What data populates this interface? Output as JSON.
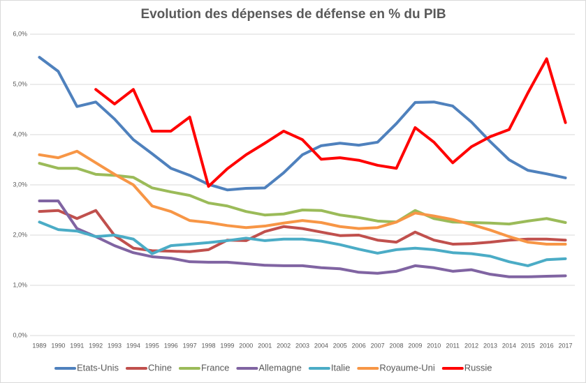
{
  "chart_data": {
    "type": "line",
    "title": "Evolution des dépenses de défense en % du PIB",
    "categories": [
      "1989",
      "1990",
      "1991",
      "1992",
      "1993",
      "1994",
      "1995",
      "1996",
      "1997",
      "1998",
      "1999",
      "2000",
      "2001",
      "2002",
      "2003",
      "2004",
      "2005",
      "2006",
      "2007",
      "2008",
      "2009",
      "2010",
      "2011",
      "2012",
      "2013",
      "2014",
      "2015",
      "2016",
      "2017"
    ],
    "series": [
      {
        "name": "Etats-Unis",
        "color": "#4f81bd",
        "values": [
          5.54,
          5.26,
          4.56,
          4.65,
          4.31,
          3.9,
          3.62,
          3.33,
          3.19,
          3.01,
          2.9,
          2.93,
          2.94,
          3.24,
          3.6,
          3.78,
          3.83,
          3.79,
          3.85,
          4.22,
          4.64,
          4.65,
          4.57,
          4.25,
          3.86,
          3.5,
          3.29,
          3.22,
          3.14
        ]
      },
      {
        "name": "Chine",
        "color": "#c0504d",
        "values": [
          2.47,
          2.49,
          2.33,
          2.49,
          1.99,
          1.74,
          1.69,
          1.68,
          1.67,
          1.71,
          1.9,
          1.89,
          2.07,
          2.17,
          2.13,
          2.06,
          1.99,
          2.0,
          1.9,
          1.86,
          2.06,
          1.9,
          1.82,
          1.83,
          1.86,
          1.9,
          1.92,
          1.92,
          1.9
        ]
      },
      {
        "name": "France",
        "color": "#9bbb59",
        "values": [
          3.43,
          3.33,
          3.33,
          3.21,
          3.19,
          3.15,
          2.94,
          2.86,
          2.79,
          2.64,
          2.58,
          2.47,
          2.4,
          2.42,
          2.5,
          2.49,
          2.4,
          2.35,
          2.28,
          2.26,
          2.49,
          2.33,
          2.26,
          2.25,
          2.24,
          2.22,
          2.28,
          2.33,
          2.25
        ]
      },
      {
        "name": "Allemagne",
        "color": "#8064a2",
        "values": [
          2.68,
          2.68,
          2.13,
          1.97,
          1.79,
          1.65,
          1.57,
          1.54,
          1.47,
          1.46,
          1.46,
          1.43,
          1.4,
          1.39,
          1.39,
          1.35,
          1.33,
          1.26,
          1.24,
          1.28,
          1.39,
          1.35,
          1.28,
          1.31,
          1.22,
          1.17,
          1.17,
          1.18,
          1.19
        ]
      },
      {
        "name": "Italie",
        "color": "#4bacc6",
        "values": [
          2.26,
          2.11,
          2.08,
          1.97,
          2.0,
          1.92,
          1.63,
          1.79,
          1.82,
          1.85,
          1.89,
          1.94,
          1.89,
          1.92,
          1.92,
          1.88,
          1.81,
          1.72,
          1.64,
          1.71,
          1.74,
          1.71,
          1.65,
          1.63,
          1.58,
          1.47,
          1.39,
          1.51,
          1.53
        ]
      },
      {
        "name": "Royaume-Uni",
        "color": "#f79646",
        "values": [
          3.6,
          3.54,
          3.67,
          3.44,
          3.21,
          3.0,
          2.58,
          2.47,
          2.29,
          2.25,
          2.19,
          2.15,
          2.18,
          2.24,
          2.29,
          2.25,
          2.17,
          2.13,
          2.15,
          2.26,
          2.44,
          2.38,
          2.31,
          2.21,
          2.1,
          1.97,
          1.86,
          1.82,
          1.82
        ]
      },
      {
        "name": "Russie",
        "color": "#ff0000",
        "values": [
          null,
          null,
          null,
          4.9,
          4.61,
          4.9,
          4.07,
          4.07,
          4.35,
          2.97,
          3.32,
          3.6,
          3.83,
          4.07,
          3.9,
          3.51,
          3.54,
          3.49,
          3.39,
          3.33,
          4.14,
          3.85,
          3.44,
          3.76,
          3.96,
          4.1,
          4.83,
          5.51,
          4.24
        ]
      }
    ],
    "ylim": [
      0,
      6
    ],
    "yticks": [
      {
        "value": 0,
        "label": "0,0%"
      },
      {
        "value": 1,
        "label": "1,0%"
      },
      {
        "value": 2,
        "label": "2,0%"
      },
      {
        "value": 3,
        "label": "3,0%"
      },
      {
        "value": 4,
        "label": "4,0%"
      },
      {
        "value": 5,
        "label": "5,0%"
      },
      {
        "value": 6,
        "label": "6,0%"
      }
    ],
    "grid": true,
    "legend": "bottom"
  }
}
